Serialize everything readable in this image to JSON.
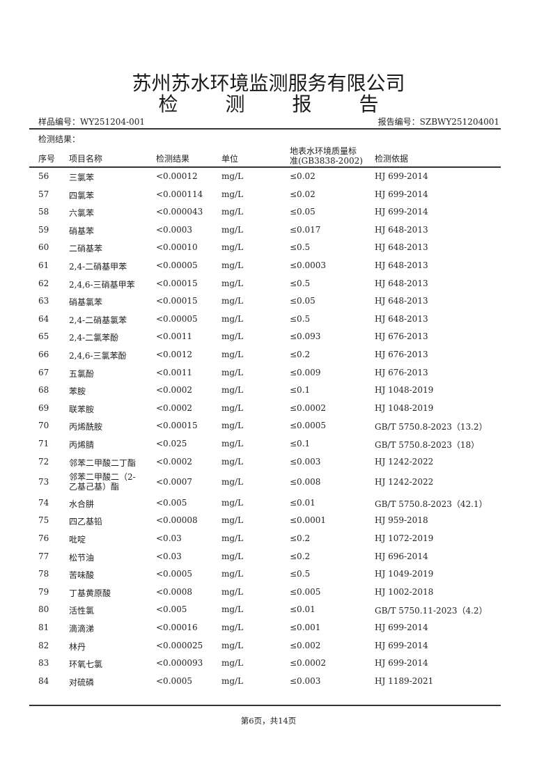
{
  "header": {
    "company": "苏州苏水环境监测服务有限公司",
    "title_chars": [
      "检",
      "测",
      "报",
      "告"
    ],
    "sample_no": "样品编号：WY251204-001",
    "report_no": "报告编号：SZBWY251204001"
  },
  "section_label": "检测结果：",
  "columns": [
    "序号",
    "项目名称",
    "检测结果",
    "单位",
    "地表水环境质量标",
    "准(GB3838-2002)",
    "检测依据"
  ],
  "rows": [
    [
      "56",
      "三氯苯",
      "<0.00012",
      "mg/L",
      "≤0.02",
      "HJ 699-2014"
    ],
    [
      "57",
      "四氯苯",
      "<0.000114",
      "mg/L",
      "≤0.02",
      "HJ 699-2014"
    ],
    [
      "58",
      "六氯苯",
      "<0.000043",
      "mg/L",
      "≤0.05",
      "HJ 699-2014"
    ],
    [
      "59",
      "硝基苯",
      "<0.0003",
      "mg/L",
      "≤0.017",
      "HJ 648-2013"
    ],
    [
      "60",
      "二硝基苯",
      "<0.00010",
      "mg/L",
      "≤0.5",
      "HJ 648-2013"
    ],
    [
      "61",
      "2,4-二硝基甲苯",
      "<0.00005",
      "mg/L",
      "≤0.0003",
      "HJ 648-2013"
    ],
    [
      "62",
      "2,4,6-三硝基甲苯",
      "<0.00015",
      "mg/L",
      "≤0.5",
      "HJ 648-2013"
    ],
    [
      "63",
      "硝基氯苯",
      "<0.00015",
      "mg/L",
      "≤0.05",
      "HJ 648-2013"
    ],
    [
      "64",
      "2,4-二硝基氯苯",
      "<0.00005",
      "mg/L",
      "≤0.5",
      "HJ 648-2013"
    ],
    [
      "65",
      "2,4-二氯苯酚",
      "<0.0011",
      "mg/L",
      "≤0.093",
      "HJ 676-2013"
    ],
    [
      "66",
      "2,4,6-三氯苯酚",
      "<0.0012",
      "mg/L",
      "≤0.2",
      "HJ 676-2013"
    ],
    [
      "67",
      "五氯酚",
      "<0.0011",
      "mg/L",
      "≤0.009",
      "HJ 676-2013"
    ],
    [
      "68",
      "苯胺",
      "<0.0002",
      "mg/L",
      "≤0.1",
      "HJ 1048-2019"
    ],
    [
      "69",
      "联苯胺",
      "<0.0002",
      "mg/L",
      "≤0.0002",
      "HJ 1048-2019"
    ],
    [
      "70",
      "丙烯酰胺",
      "<0.00015",
      "mg/L",
      "≤0.0005",
      "GB/T 5750.8-2023（13.2）"
    ],
    [
      "71",
      "丙烯腈",
      "<0.025",
      "mg/L",
      "≤0.1",
      "GB/T 5750.8-2023（18）"
    ],
    [
      "72",
      "邻苯二甲酸二丁酯",
      "<0.0002",
      "mg/L",
      "≤0.003",
      "HJ 1242-2022"
    ],
    [
      "73",
      "邻苯二甲酸二（2-\n乙基己基）酯",
      "<0.0007",
      "mg/L",
      "≤0.008",
      "HJ 1242-2022"
    ],
    [
      "74",
      "水合肼",
      "<0.005",
      "mg/L",
      "≤0.01",
      "GB/T 5750.8-2023（42.1）"
    ],
    [
      "75",
      "四乙基铅",
      "<0.00008",
      "mg/L",
      "≤0.0001",
      "HJ 959-2018"
    ],
    [
      "76",
      "吡啶",
      "<0.03",
      "mg/L",
      "≤0.2",
      "HJ 1072-2019"
    ],
    [
      "77",
      "松节油",
      "<0.03",
      "mg/L",
      "≤0.2",
      "HJ 696-2014"
    ],
    [
      "78",
      "苦味酸",
      "<0.0005",
      "mg/L",
      "≤0.5",
      "HJ 1049-2019"
    ],
    [
      "79",
      "丁基黄原酸",
      "<0.0008",
      "mg/L",
      "≤0.005",
      "HJ 1002-2018"
    ],
    [
      "80",
      "活性氯",
      "<0.005",
      "mg/L",
      "≤0.01",
      "GB/T 5750.11-2023（4.2）"
    ],
    [
      "81",
      "滴滴涕",
      "<0.00016",
      "mg/L",
      "≤0.001",
      "HJ 699-2014"
    ],
    [
      "82",
      "林丹",
      "<0.000025",
      "mg/L",
      "≤0.002",
      "HJ 699-2014"
    ],
    [
      "83",
      "环氧七氯",
      "<0.000093",
      "mg/L",
      "≤0.0002",
      "HJ 699-2014"
    ],
    [
      "84",
      "对硫磷",
      "<0.0005",
      "mg/L",
      "≤0.003",
      "HJ 1189-2021"
    ]
  ],
  "footer": "第6页，共14页"
}
